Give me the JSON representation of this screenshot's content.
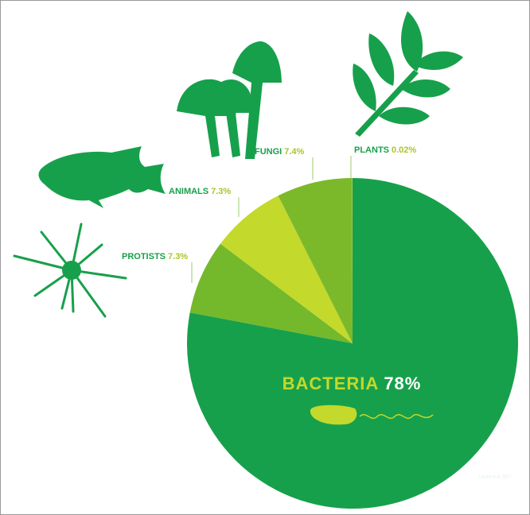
{
  "chart_data": {
    "type": "pie",
    "categories": [
      "BACTERIA",
      "PROTISTS",
      "ANIMALS",
      "FUNGI",
      "PLANTS"
    ],
    "values": [
      78,
      7.3,
      7.3,
      7.4,
      0.02
    ],
    "value_labels": [
      "78%",
      "7.3%",
      "7.3%",
      "7.4%",
      "0.02%"
    ],
    "colors": [
      "#17a04b",
      "#74b82c",
      "#c3d92b",
      "#7cb92a",
      "#d7e23a"
    ],
    "source": "Larsen et al. 2017"
  }
}
